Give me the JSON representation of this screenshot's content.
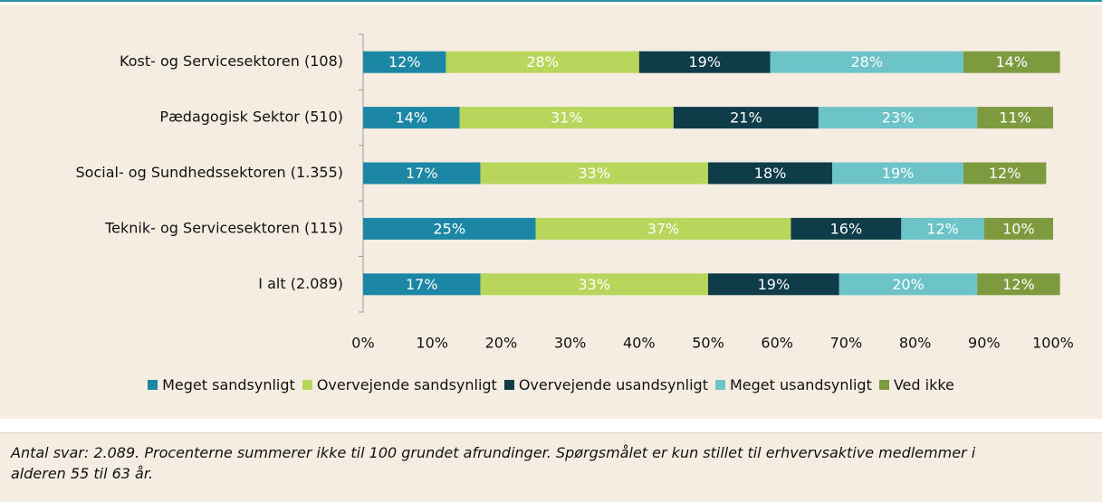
{
  "chart_data": {
    "type": "stacked-barh",
    "categories": [
      "Kost- og Servicesektoren (108)",
      "Pædagogisk Sektor (510)",
      "Social- og Sundhedssektoren (1.355)",
      "Teknik- og Servicesektoren (115)",
      "I alt (2.089)"
    ],
    "series": [
      {
        "name": "Meget sandsynligt",
        "color": "#1b87a5",
        "values": [
          12,
          14,
          17,
          25,
          17
        ],
        "value_labels": [
          "12%",
          "14%",
          "17%",
          "25%",
          "17%"
        ]
      },
      {
        "name": "Overvejende sandsynligt",
        "color": "#b8d65c",
        "values": [
          28,
          31,
          33,
          37,
          33
        ],
        "value_labels": [
          "28%",
          "31%",
          "33%",
          "37%",
          "33%"
        ]
      },
      {
        "name": "Overvejende usandsynligt",
        "color": "#0e3c48",
        "values": [
          19,
          21,
          18,
          16,
          19
        ],
        "value_labels": [
          "19%",
          "21%",
          "18%",
          "16%",
          "19%"
        ]
      },
      {
        "name": "Meget usandsynligt",
        "color": "#6cc3c8",
        "values": [
          28,
          23,
          19,
          12,
          20
        ],
        "value_labels": [
          "28%",
          "23%",
          "19%",
          "12%",
          "20%"
        ]
      },
      {
        "name": "Ved ikke",
        "color": "#7e9a3f",
        "values": [
          14,
          11,
          12,
          10,
          12
        ],
        "value_labels": [
          "14%",
          "11%",
          "12%",
          "10%",
          "12%"
        ]
      }
    ],
    "xlim": [
      0,
      100
    ],
    "xticks": [
      {
        "value": 0,
        "label": "0%"
      },
      {
        "value": 10,
        "label": "10%"
      },
      {
        "value": 20,
        "label": "20%"
      },
      {
        "value": 30,
        "label": "30%"
      },
      {
        "value": 40,
        "label": "40%"
      },
      {
        "value": 50,
        "label": "50%"
      },
      {
        "value": 60,
        "label": "60%"
      },
      {
        "value": 70,
        "label": "70%"
      },
      {
        "value": 80,
        "label": "80%"
      },
      {
        "value": 90,
        "label": "90%"
      },
      {
        "value": 100,
        "label": "100%"
      }
    ],
    "legend": "bottom",
    "note": "Antal svar: 2.089. Procenterne summerer ikke til 100 grundet afrundinger. Spørgsmålet er kun stillet til erhvervsaktive medlemmer i alderen 55 til 63 år."
  }
}
